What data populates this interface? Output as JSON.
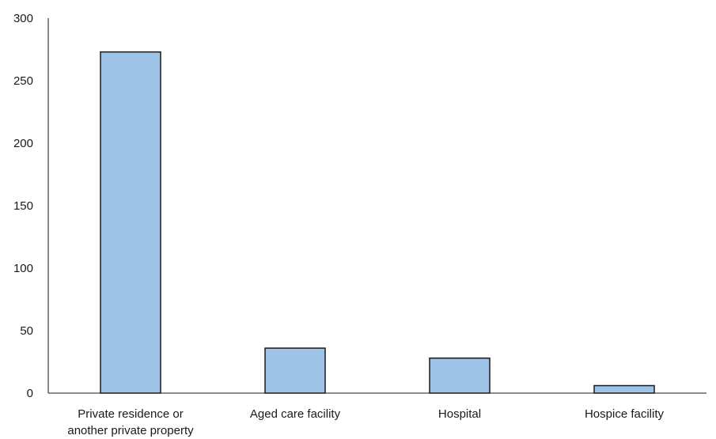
{
  "chart_data": {
    "type": "bar",
    "title": "",
    "xlabel": "",
    "ylabel": "",
    "categories": [
      [
        "Private residence or",
        "another private property"
      ],
      [
        "Aged care facility"
      ],
      [
        "Hospital"
      ],
      [
        "Hospice facility"
      ]
    ],
    "values": [
      273,
      36,
      28,
      6
    ],
    "ylim": [
      0,
      300
    ],
    "yticks": [
      0,
      50,
      100,
      150,
      200,
      250,
      300
    ],
    "grid": false,
    "legend": "none",
    "colors": {
      "bar_fill": "#9dc3e6",
      "bar_stroke": "#1a1a1a",
      "axis": "#1a1a1a"
    }
  }
}
